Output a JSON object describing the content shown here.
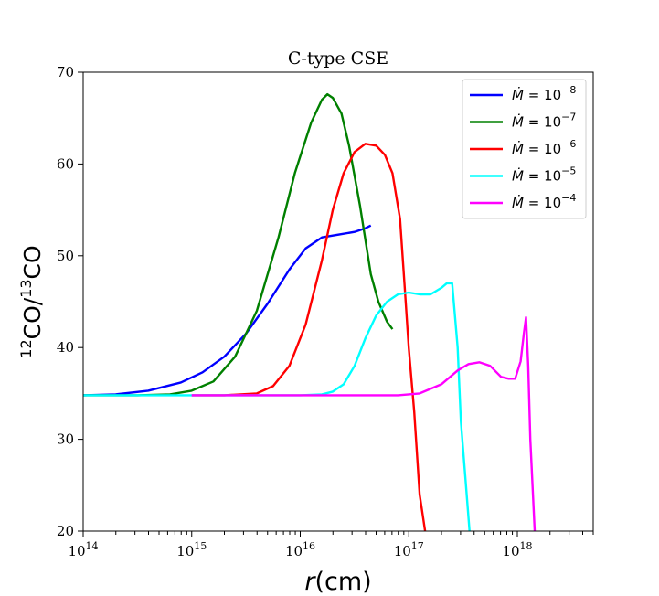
{
  "chart_data": {
    "type": "line",
    "title": "C-type CSE",
    "xlabel": "r(cm)",
    "ylabel": "12CO/13CO",
    "xscale": "log",
    "xlim": [
      100000000000000.0,
      5e+18
    ],
    "ylim": [
      20,
      70
    ],
    "yticks": [
      20,
      30,
      40,
      50,
      60,
      70
    ],
    "xtick_exponents": [
      14,
      15,
      16,
      17,
      18
    ],
    "legend_position": "top-right",
    "series": [
      {
        "name": "Ṁ = 10^-8",
        "label_base": "Ṁ = 10",
        "label_exp": "−8",
        "color": "#0000ff",
        "x_log10": [
          14.0,
          14.3,
          14.6,
          14.9,
          15.1,
          15.3,
          15.5,
          15.7,
          15.9,
          16.05,
          16.2,
          16.35,
          16.5,
          16.6,
          16.65
        ],
        "y": [
          34.8,
          34.9,
          35.3,
          36.2,
          37.3,
          39.0,
          41.5,
          44.8,
          48.5,
          50.8,
          52.0,
          52.3,
          52.6,
          53.0,
          53.3
        ]
      },
      {
        "name": "Ṁ = 10^-7",
        "label_base": "Ṁ = 10",
        "label_exp": "−7",
        "color": "#008000",
        "x_log10": [
          14.0,
          14.5,
          14.8,
          15.0,
          15.2,
          15.4,
          15.6,
          15.8,
          15.95,
          16.1,
          16.2,
          16.25,
          16.3,
          16.38,
          16.45,
          16.55,
          16.65,
          16.72,
          16.8,
          16.85
        ],
        "y": [
          34.8,
          34.8,
          34.9,
          35.3,
          36.3,
          39.0,
          44.0,
          52.0,
          59.0,
          64.5,
          67.0,
          67.6,
          67.2,
          65.5,
          62.0,
          55.5,
          48.0,
          45.0,
          42.8,
          42.0
        ]
      },
      {
        "name": "Ṁ = 10^-6",
        "label_base": "Ṁ = 10",
        "label_exp": "−6",
        "color": "#ff0000",
        "x_log10": [
          15.0,
          15.3,
          15.6,
          15.75,
          15.9,
          16.05,
          16.2,
          16.3,
          16.4,
          16.5,
          16.6,
          16.7,
          16.78,
          16.85,
          16.92,
          16.96,
          17.0,
          17.05,
          17.1,
          17.15
        ],
        "y": [
          34.8,
          34.8,
          35.0,
          35.8,
          38.0,
          42.5,
          49.5,
          55.0,
          59.0,
          61.3,
          62.2,
          62.0,
          61.0,
          59.0,
          54.0,
          47.0,
          40.0,
          33.0,
          24.0,
          20.0
        ]
      },
      {
        "name": "Ṁ = 10^-5",
        "label_base": "Ṁ = 10",
        "label_exp": "−5",
        "color": "#00ffff",
        "x_log10": [
          14.0,
          15.5,
          16.0,
          16.2,
          16.3,
          16.4,
          16.5,
          16.6,
          16.7,
          16.8,
          16.9,
          17.0,
          17.1,
          17.2,
          17.3,
          17.35,
          17.4,
          17.45,
          17.48,
          17.52,
          17.56
        ],
        "y": [
          34.8,
          34.8,
          34.8,
          34.9,
          35.2,
          36.0,
          38.0,
          41.0,
          43.5,
          45.0,
          45.8,
          46.0,
          45.8,
          45.8,
          46.5,
          47.0,
          47.0,
          40.0,
          32.0,
          26.0,
          20.0
        ]
      },
      {
        "name": "Ṁ = 10^-4",
        "label_base": "Ṁ = 10",
        "label_exp": "−4",
        "color": "#ff00ff",
        "x_log10": [
          15.0,
          16.0,
          16.5,
          16.9,
          17.1,
          17.3,
          17.45,
          17.55,
          17.65,
          17.75,
          17.85,
          17.92,
          17.98,
          18.03,
          18.06,
          18.08,
          18.1,
          18.12,
          18.14,
          18.16
        ],
        "y": [
          34.8,
          34.8,
          34.8,
          34.8,
          35.0,
          36.0,
          37.5,
          38.2,
          38.4,
          38.0,
          36.8,
          36.6,
          36.6,
          38.5,
          41.5,
          43.3,
          38.0,
          30.0,
          25.0,
          20.0
        ]
      }
    ]
  }
}
